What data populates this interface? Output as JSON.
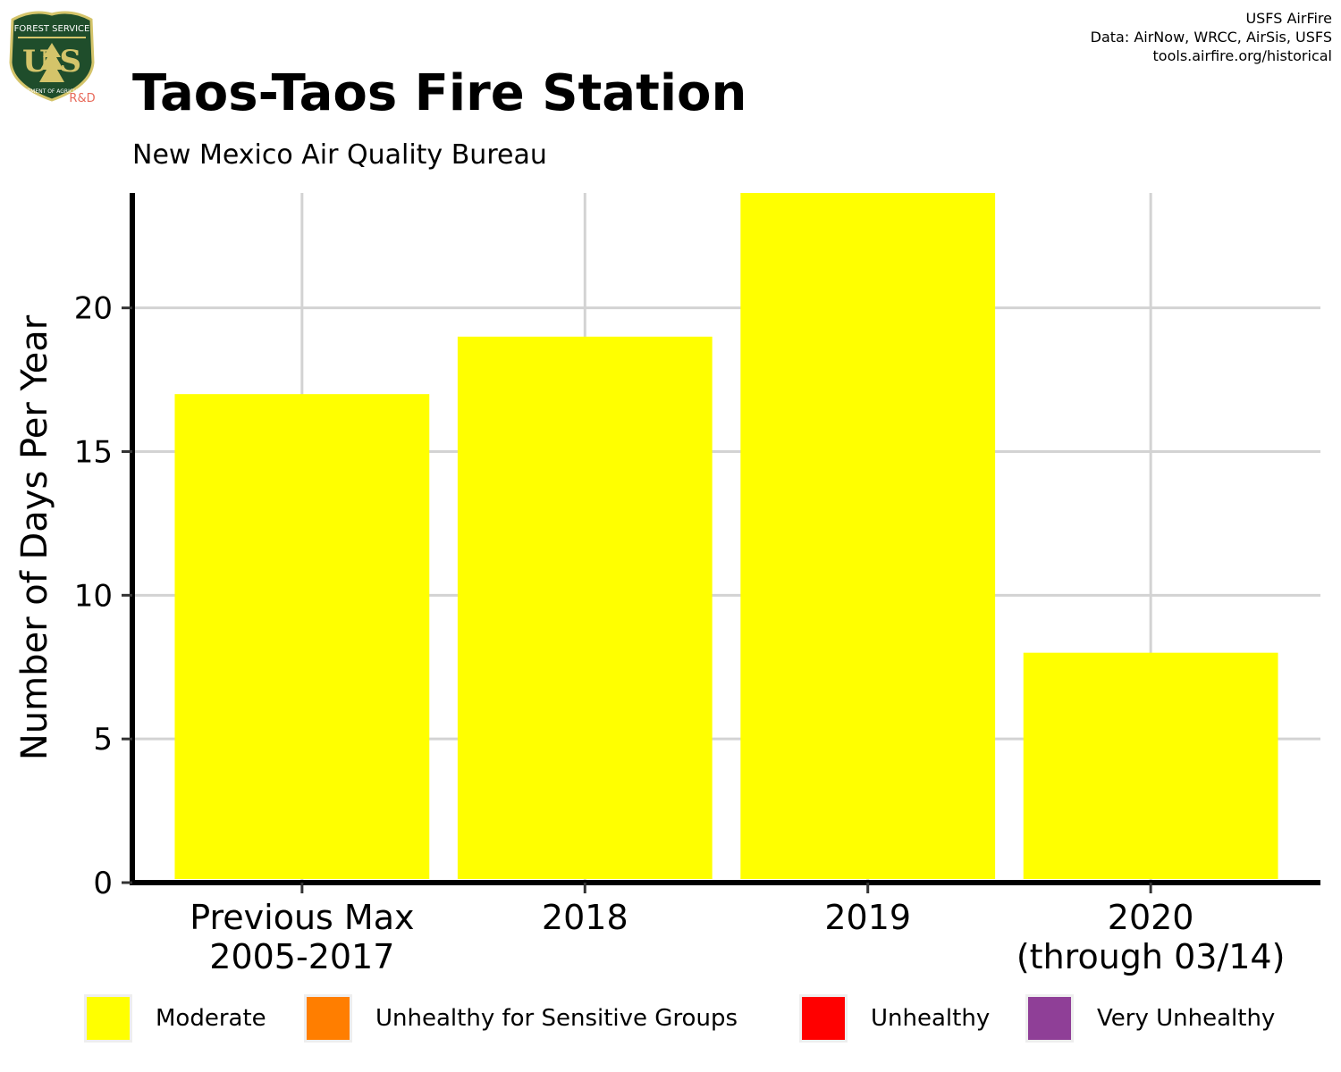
{
  "header": {
    "title": "Taos-Taos Fire Station",
    "subtitle": "New Mexico Air Quality Bureau",
    "credits": [
      "USFS AirFire",
      "Data: AirNow, WRCC, AirSis, USFS",
      "tools.airfire.org/historical"
    ],
    "logo": {
      "icon": "usfs-shield-logo",
      "top_text": "FOREST SERVICE",
      "letters": "U S",
      "bottom_text": "DEPARTMENT OF AGRICULTURE",
      "tag": "R&D"
    }
  },
  "chart_data": {
    "type": "bar",
    "title": "Taos-Taos Fire Station",
    "subtitle": "New Mexico Air Quality Bureau",
    "ylabel": "Number of Days Per Year",
    "xlabel": "",
    "categories": [
      [
        "Previous Max",
        "2005-2017"
      ],
      [
        "2018"
      ],
      [
        "2019"
      ],
      [
        "2020",
        "(through 03/14)"
      ]
    ],
    "series": [
      {
        "name": "Moderate",
        "color": "#FFFF00",
        "values": [
          17,
          19,
          24,
          8
        ]
      },
      {
        "name": "Unhealthy for Sensitive Groups",
        "color": "#FF7E00",
        "values": [
          0,
          0,
          0,
          0
        ]
      },
      {
        "name": "Unhealthy",
        "color": "#FF0000",
        "values": [
          0,
          0,
          0,
          0
        ]
      },
      {
        "name": "Very Unhealthy",
        "color": "#8F3F97",
        "values": [
          0,
          0,
          0,
          0
        ]
      }
    ],
    "ylim": [
      0,
      24
    ],
    "yticks": [
      0,
      5,
      10,
      15,
      20
    ],
    "grid": true,
    "legend_position": "bottom"
  },
  "legend": {
    "items": [
      {
        "label": "Moderate",
        "color": "#FFFF00"
      },
      {
        "label": "Unhealthy for Sensitive Groups",
        "color": "#FF7E00"
      },
      {
        "label": "Unhealthy",
        "color": "#FF0000"
      },
      {
        "label": "Very Unhealthy",
        "color": "#8F3F97"
      }
    ]
  }
}
